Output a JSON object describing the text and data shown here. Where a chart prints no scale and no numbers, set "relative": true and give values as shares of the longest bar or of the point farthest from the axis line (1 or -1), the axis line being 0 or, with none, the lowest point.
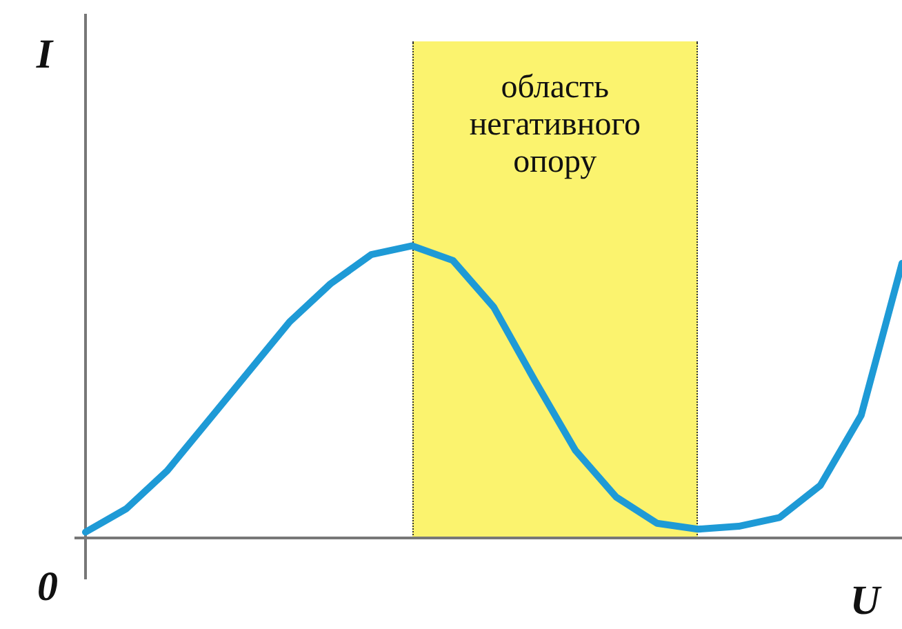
{
  "chart_data": {
    "type": "line",
    "relative": true,
    "xlabel": "U",
    "ylabel": "I",
    "categories": [
      null,
      null,
      null,
      null,
      null,
      null,
      null,
      null,
      null,
      null,
      null,
      null,
      null,
      null,
      null,
      null,
      null,
      null,
      null,
      null,
      null
    ],
    "legend": false,
    "marker": "none",
    "line_style": "solid",
    "series": [
      {
        "color": "#1e9ad6",
        "values": [
          0.02,
          0.1,
          0.23,
          0.4,
          0.57,
          0.74,
          0.87,
          0.97,
          1,
          0.95,
          0.79,
          0.54,
          0.3,
          0.14,
          0.05,
          0.03,
          0.04,
          0.07,
          0.18,
          0.42,
          0.94
        ]
      }
    ],
    "annotations": [
      "0",
      "область негативного опору"
    ]
  }
}
